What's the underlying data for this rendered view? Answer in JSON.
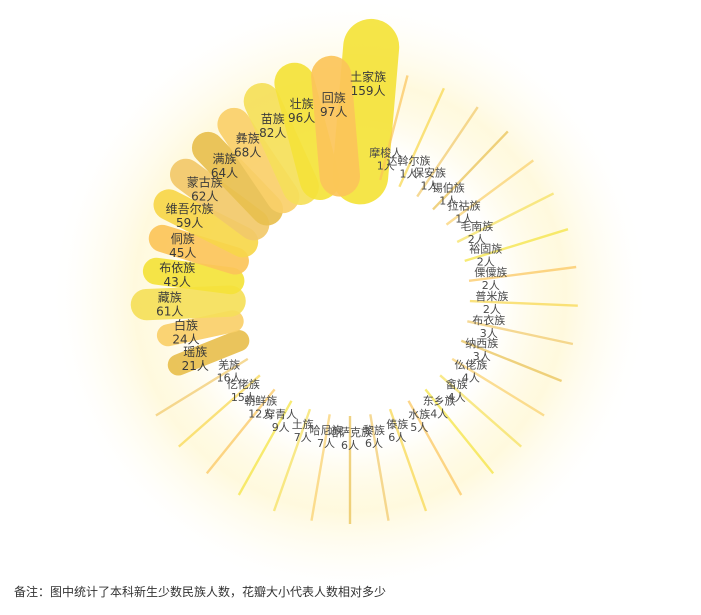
{
  "note": "备注：图中统计了本科新生少数民族人数，花瓣大小代表人数相对多少",
  "unit_suffix": "人",
  "chart_data": {
    "type": "bar",
    "subtype": "radial-petal",
    "title": "",
    "value_unit": "人",
    "grid": false,
    "legend": "none",
    "colors": {
      "high": "#f5e33a",
      "mid": "#fcc55a",
      "low": "#f2c96a",
      "accent": "#e6c25a"
    },
    "categories": [
      "土家族",
      "摩梭人",
      "达斡尔族",
      "保安族",
      "锡伯族",
      "拉祜族",
      "毛南族",
      "裕固族",
      "傈僳族",
      "普米族",
      "布衣族",
      "纳西族",
      "仫佬族",
      "畲族",
      "东乡族",
      "水族",
      "傣族",
      "黎族",
      "哈萨克族",
      "哈尼族",
      "土族",
      "穿青人",
      "朝鲜族",
      "仡佬族",
      "羌族",
      "瑶族",
      "白族",
      "藏族",
      "布依族",
      "侗族",
      "维吾尔族",
      "蒙古族",
      "满族",
      "彝族",
      "苗族",
      "壮族",
      "回族"
    ],
    "values": [
      159,
      1,
      1,
      1,
      1,
      1,
      2,
      2,
      2,
      2,
      3,
      3,
      4,
      4,
      4,
      5,
      6,
      6,
      6,
      7,
      7,
      9,
      12,
      15,
      16,
      21,
      24,
      61,
      43,
      45,
      59,
      62,
      64,
      68,
      82,
      96,
      97
    ],
    "labels": [
      "159人",
      "1人",
      "1人",
      "1人",
      "1人",
      "1人",
      "2人",
      "2人",
      "2人",
      "2人",
      "3人",
      "3人",
      "4人",
      "4人",
      "4人",
      "5人",
      "6人",
      "6人",
      "6人",
      "7人",
      "7人",
      "9人",
      "12人",
      "15人",
      "16人",
      "21人",
      "24人",
      "61人",
      "43人",
      "45人",
      "59人",
      "62人",
      "64人",
      "68人",
      "82人",
      "96人",
      "97人"
    ]
  }
}
